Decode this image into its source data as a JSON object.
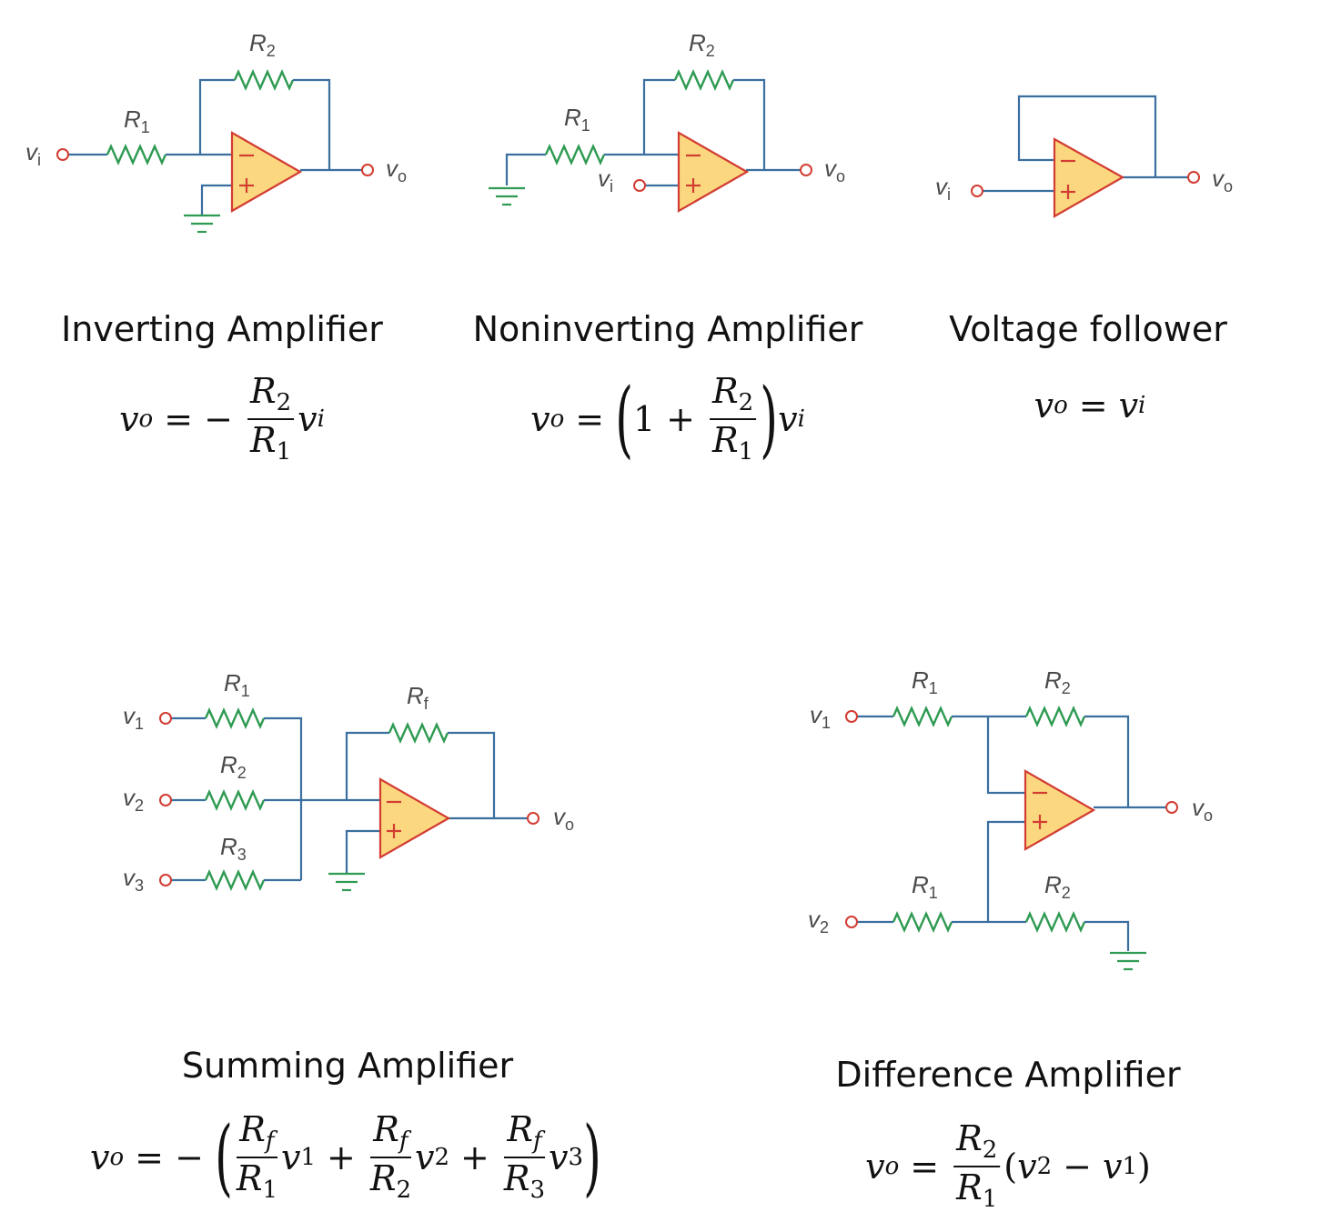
{
  "circuits": {
    "inverting": {
      "labels": {
        "r_top": "R",
        "r_top_sub": "2",
        "r_in": "R",
        "r_in_sub": "1",
        "vin": "v",
        "vin_sub": "i",
        "vout": "v",
        "vout_sub": "o"
      },
      "title": "Inverting Amplifier",
      "eq": {
        "lhs_v": "v",
        "lhs_sub": "o",
        "rel": "= −",
        "num": "R",
        "num_sub": "2",
        "den": "R",
        "den_sub": "1",
        "tail_v": "v",
        "tail_sub": "i"
      }
    },
    "noninverting": {
      "labels": {
        "r_top": "R",
        "r_top_sub": "2",
        "r_in": "R",
        "r_in_sub": "1",
        "vin": "v",
        "vin_sub": "i",
        "vout": "v",
        "vout_sub": "o"
      },
      "title": "Noninverting Amplifier",
      "eq": {
        "lhs_v": "v",
        "lhs_sub": "o",
        "rel": "=",
        "open": "(",
        "one": "1",
        "plus": "+",
        "num": "R",
        "num_sub": "2",
        "den": "R",
        "den_sub": "1",
        "close": ")",
        "tail_v": "v",
        "tail_sub": "i"
      }
    },
    "follower": {
      "labels": {
        "vin": "v",
        "vin_sub": "i",
        "vout": "v",
        "vout_sub": "o"
      },
      "title": "Voltage follower",
      "eq": {
        "lhs_v": "v",
        "lhs_sub": "o",
        "rel": "=",
        "rhs_v": "v",
        "rhs_sub": "i"
      }
    },
    "summing": {
      "labels": {
        "r1": "R",
        "r1_sub": "1",
        "r2": "R",
        "r2_sub": "2",
        "r3": "R",
        "r3_sub": "3",
        "rf": "R",
        "rf_sub": "f",
        "v1": "v",
        "v1_sub": "1",
        "v2": "v",
        "v2_sub": "2",
        "v3": "v",
        "v3_sub": "3",
        "vout": "v",
        "vout_sub": "o"
      },
      "title": "Summing Amplifier",
      "eq": {
        "lhs_v": "v",
        "lhs_sub": "o",
        "rel": "= −",
        "open": "(",
        "terms": [
          {
            "num": "R",
            "num_sub": "f",
            "den": "R",
            "den_sub": "1",
            "v": "v",
            "v_sub": "1",
            "op": "+"
          },
          {
            "num": "R",
            "num_sub": "f",
            "den": "R",
            "den_sub": "2",
            "v": "v",
            "v_sub": "2",
            "op": "+"
          },
          {
            "num": "R",
            "num_sub": "f",
            "den": "R",
            "den_sub": "3",
            "v": "v",
            "v_sub": "3",
            "op": ""
          }
        ],
        "close": ")"
      }
    },
    "difference": {
      "labels": {
        "r1_top": "R",
        "r1_top_sub": "1",
        "r2_top": "R",
        "r2_top_sub": "2",
        "r1_bot": "R",
        "r1_bot_sub": "1",
        "r2_bot": "R",
        "r2_bot_sub": "2",
        "v1": "v",
        "v1_sub": "1",
        "v2": "v",
        "v2_sub": "2",
        "vout": "v",
        "vout_sub": "o"
      },
      "title": "Difference Amplifier",
      "eq": {
        "lhs_v": "v",
        "lhs_sub": "o",
        "rel": "=",
        "num": "R",
        "num_sub": "2",
        "den": "R",
        "den_sub": "1",
        "paren_open": "(",
        "a_v": "v",
        "a_sub": "2",
        "minus": "−",
        "b_v": "v",
        "b_sub": "1",
        "paren_close": ")"
      }
    }
  },
  "opamp_signs": {
    "minus": "−",
    "plus": "+"
  },
  "colors": {
    "wire": "#3a6f9f",
    "resistor": "#2e9a52",
    "terminal": "#d23c32",
    "opamp_fill": "#fbd77f",
    "opamp_stroke": "#d23c32"
  }
}
